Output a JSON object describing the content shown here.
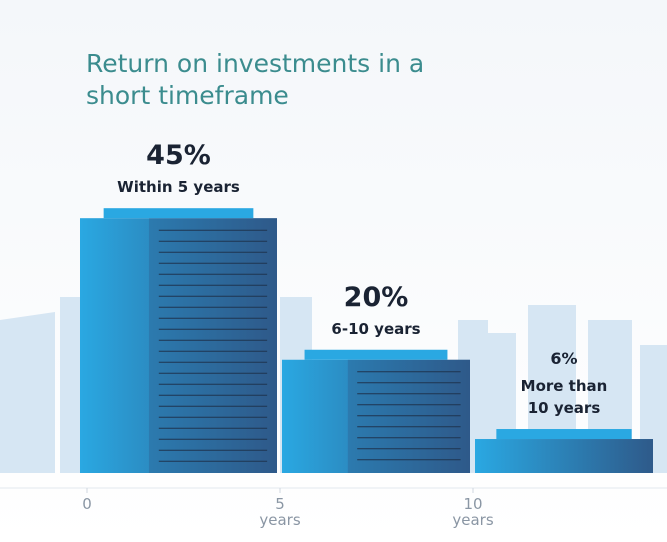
{
  "chart_data": {
    "type": "histogram",
    "title": "Return on investments in a short timeframe",
    "bins": [
      0,
      5,
      10,
      15
    ],
    "values": [
      45,
      20,
      6
    ],
    "value_labels": [
      "45%",
      "20%",
      "6%"
    ],
    "labels": [
      "Within 5 years",
      "6-10 years",
      "More than 10 years"
    ],
    "colors": [
      "#2aa8e2",
      "#2e5a8a"
    ],
    "xlim": [
      0,
      15
    ],
    "xticks": [
      0,
      {
        "value": 5,
        "label": "5 years"
      },
      {
        "value": 10,
        "label": "10 years"
      }
    ],
    "ylim": [
      0,
      80
    ]
  }
}
